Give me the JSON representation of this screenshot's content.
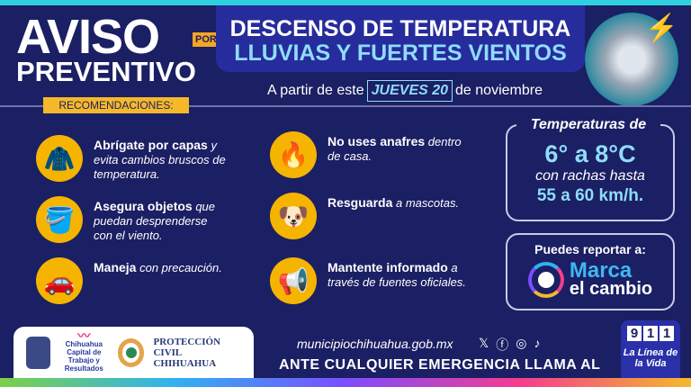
{
  "header": {
    "aviso": "AVISO",
    "preventivo": "PREVENTIVO",
    "por": "POR",
    "title_line1": "DESCENSO DE TEMPERATURA",
    "title_line2": "LLUVIAS Y FUERTES VIENTOS",
    "date_prefix": "A partir de este",
    "date_highlight": "JUEVES 20",
    "date_suffix": "de noviembre"
  },
  "recommendations_label": "RECOMENDACIONES:",
  "recommendations": [
    {
      "icon": "jacket-icon",
      "glyph": "🧥",
      "bold": "Abrígate por capas",
      "text": "y evita cambios bruscos de temperatura."
    },
    {
      "icon": "bucket-icon",
      "glyph": "🪣",
      "bold": "Asegura objetos",
      "text": "que puedan desprenderse con el viento."
    },
    {
      "icon": "car-icon",
      "glyph": "🚗",
      "bold": "Maneja",
      "text": "con precaución."
    },
    {
      "icon": "campfire-pot-icon",
      "glyph": "🔥",
      "bold": "No uses anafres",
      "text": "dentro de casa."
    },
    {
      "icon": "pets-icon",
      "glyph": "🐶",
      "bold": "Resguarda",
      "text": "a mascotas."
    },
    {
      "icon": "megaphone-icon",
      "glyph": "📢",
      "bold": "Mantente informado",
      "text": "a través de fuentes oficiales."
    }
  ],
  "temperature": {
    "title": "Temperaturas de",
    "range": "6° a 8°C",
    "gusts_label": "con rachas hasta",
    "wind": "55 a 60 km/h."
  },
  "report": {
    "label": "Puedes reportar a:",
    "brand_line1": "Marca",
    "brand_line2": "el cambio"
  },
  "footer": {
    "chihuahua": "Chihuahua",
    "chihuahua_sub": "Capital de Trabajo y Resultados",
    "proteccion": "PROTECCIÓN CIVIL",
    "proteccion_city": "CHIHUAHUA",
    "url": "municipiochihuahua.gob.mx",
    "emergency": "ANTE CUALQUIER EMERGENCIA LLAMA AL",
    "nine": [
      "9",
      "1",
      "1"
    ],
    "linea": "La Línea de la Vida"
  },
  "colors": {
    "background": "#1b1f63",
    "accent_yellow": "#f5b82a",
    "accent_cyan": "#8fdcfb"
  }
}
